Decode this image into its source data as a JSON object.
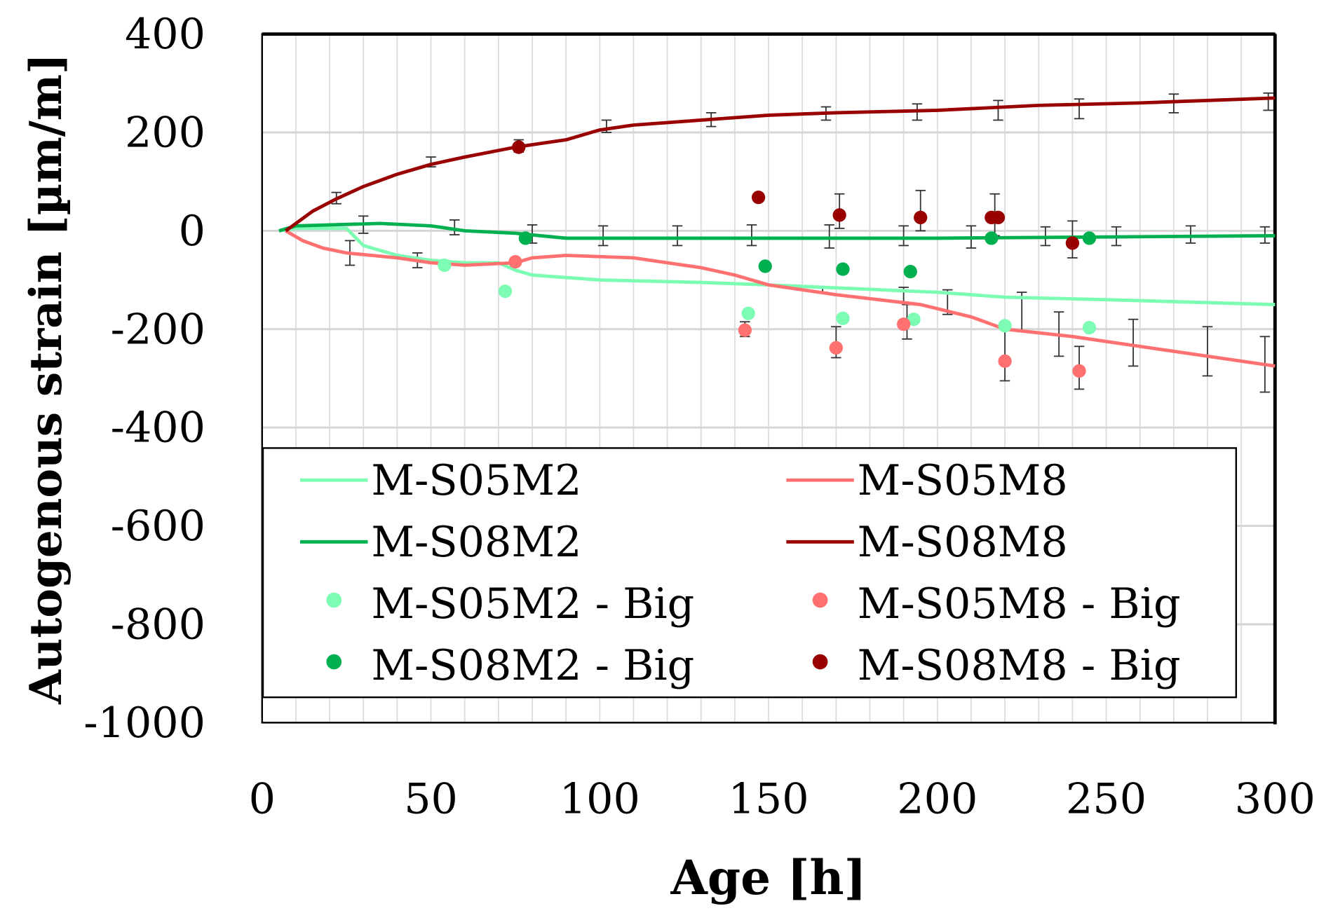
{
  "chart_data": {
    "type": "line",
    "title": "",
    "xlabel": "Age [h]",
    "ylabel": "Autogenous strain [µm/m]",
    "xlim": [
      0,
      300
    ],
    "ylim": [
      -1000,
      400
    ],
    "xticks": [
      0,
      50,
      100,
      150,
      200,
      250,
      300
    ],
    "yticks": [
      400,
      200,
      0,
      -200,
      -400,
      -600,
      -800,
      -1000
    ],
    "grid": true,
    "legend_position": "bottom-inside",
    "series": [
      {
        "name": "M-S05M2",
        "kind": "line",
        "color": "#7dfcb4",
        "x": [
          5,
          10,
          25,
          30,
          40,
          50,
          60,
          70,
          75,
          80,
          90,
          100,
          130,
          150,
          200,
          220,
          250,
          300
        ],
        "y": [
          0,
          5,
          5,
          -30,
          -50,
          -60,
          -65,
          -65,
          -80,
          -90,
          -95,
          -100,
          -105,
          -110,
          -125,
          -135,
          -140,
          -150
        ]
      },
      {
        "name": "M-S05M8",
        "kind": "line",
        "color": "#ff7070",
        "x": [
          7,
          12,
          18,
          25,
          40,
          50,
          60,
          75,
          80,
          90,
          110,
          130,
          140,
          150,
          170,
          195,
          210,
          220,
          240,
          260,
          285,
          300
        ],
        "y": [
          0,
          -20,
          -35,
          -45,
          -55,
          -65,
          -70,
          -65,
          -55,
          -50,
          -55,
          -75,
          -90,
          -110,
          -130,
          -150,
          -175,
          -200,
          -215,
          -235,
          -260,
          -275
        ]
      },
      {
        "name": "M-S08M2",
        "kind": "line",
        "color": "#00b050",
        "x": [
          5,
          10,
          35,
          50,
          60,
          75,
          90,
          120,
          200,
          300
        ],
        "y": [
          0,
          10,
          15,
          10,
          0,
          -5,
          -15,
          -15,
          -15,
          -10
        ]
      },
      {
        "name": "M-S08M8",
        "kind": "line",
        "color": "#990000",
        "x": [
          7,
          15,
          22,
          30,
          40,
          50,
          60,
          75,
          90,
          100,
          110,
          130,
          150,
          170,
          200,
          230,
          260,
          300
        ],
        "y": [
          0,
          40,
          65,
          90,
          115,
          135,
          150,
          170,
          185,
          205,
          215,
          225,
          235,
          240,
          245,
          255,
          260,
          270
        ]
      },
      {
        "name": "M-S05M2 - Big",
        "kind": "scatter",
        "color": "#7dfcb4",
        "x": [
          54,
          72,
          144,
          172,
          193,
          220,
          245
        ],
        "y": [
          -70,
          -123,
          -168,
          -178,
          -180,
          -193,
          -197
        ]
      },
      {
        "name": "M-S05M8 - Big",
        "kind": "scatter",
        "color": "#ff7070",
        "x": [
          75,
          143,
          170,
          190,
          220,
          242
        ],
        "y": [
          -63,
          -202,
          -238,
          -190,
          -265,
          -285
        ]
      },
      {
        "name": "M-S08M2 - Big",
        "kind": "scatter",
        "color": "#00b050",
        "x": [
          78,
          149,
          172,
          192,
          216,
          245
        ],
        "y": [
          -15,
          -72,
          -78,
          -83,
          -15,
          -15
        ]
      },
      {
        "name": "M-S08M8 - Big",
        "kind": "scatter",
        "color": "#990000",
        "x": [
          76,
          147,
          171,
          195,
          216,
          218,
          240
        ],
        "y": [
          170,
          68,
          32,
          27,
          27,
          27,
          -25
        ]
      }
    ],
    "error_bars": [
      {
        "x": 22,
        "low": 55,
        "high": 78
      },
      {
        "x": 50,
        "low": 130,
        "high": 150
      },
      {
        "x": 76,
        "low": 160,
        "high": 185
      },
      {
        "x": 102,
        "low": 200,
        "high": 225
      },
      {
        "x": 133,
        "low": 212,
        "high": 240
      },
      {
        "x": 167,
        "low": 225,
        "high": 252
      },
      {
        "x": 194,
        "low": 225,
        "high": 258
      },
      {
        "x": 218,
        "low": 225,
        "high": 265
      },
      {
        "x": 242,
        "low": 228,
        "high": 268
      },
      {
        "x": 270,
        "low": 240,
        "high": 278
      },
      {
        "x": 298,
        "low": 245,
        "high": 280
      },
      {
        "x": 30,
        "low": -5,
        "high": 30
      },
      {
        "x": 57,
        "low": -8,
        "high": 22
      },
      {
        "x": 80,
        "low": -25,
        "high": 12
      },
      {
        "x": 101,
        "low": -30,
        "high": 10
      },
      {
        "x": 123,
        "low": -30,
        "high": 10
      },
      {
        "x": 145,
        "low": -30,
        "high": 12
      },
      {
        "x": 168,
        "low": -35,
        "high": 12
      },
      {
        "x": 190,
        "low": -30,
        "high": 10
      },
      {
        "x": 210,
        "low": -35,
        "high": 10
      },
      {
        "x": 232,
        "low": -30,
        "high": 8
      },
      {
        "x": 253,
        "low": -30,
        "high": 8
      },
      {
        "x": 275,
        "low": -25,
        "high": 10
      },
      {
        "x": 297,
        "low": -25,
        "high": 8
      },
      {
        "x": 26,
        "low": -70,
        "high": -20
      },
      {
        "x": 46,
        "low": -75,
        "high": -45
      },
      {
        "x": 166,
        "low": -125,
        "high": -115
      },
      {
        "x": 190,
        "low": -145,
        "high": -115
      },
      {
        "x": 203,
        "low": -170,
        "high": -120
      },
      {
        "x": 225,
        "low": -205,
        "high": -125
      },
      {
        "x": 236,
        "low": -255,
        "high": -165
      },
      {
        "x": 258,
        "low": -275,
        "high": -180
      },
      {
        "x": 280,
        "low": -295,
        "high": -195
      },
      {
        "x": 297,
        "low": -328,
        "high": -215
      },
      {
        "x": 143,
        "low": -215,
        "high": -185
      },
      {
        "x": 170,
        "low": -258,
        "high": -195
      },
      {
        "x": 191,
        "low": -220,
        "high": -150
      },
      {
        "x": 220,
        "low": -305,
        "high": -200
      },
      {
        "x": 242,
        "low": -322,
        "high": -235
      },
      {
        "x": 171,
        "low": 5,
        "high": 75
      },
      {
        "x": 195,
        "low": 0,
        "high": 82
      },
      {
        "x": 217,
        "low": -10,
        "high": 75
      },
      {
        "x": 240,
        "low": -55,
        "high": 20
      }
    ]
  }
}
